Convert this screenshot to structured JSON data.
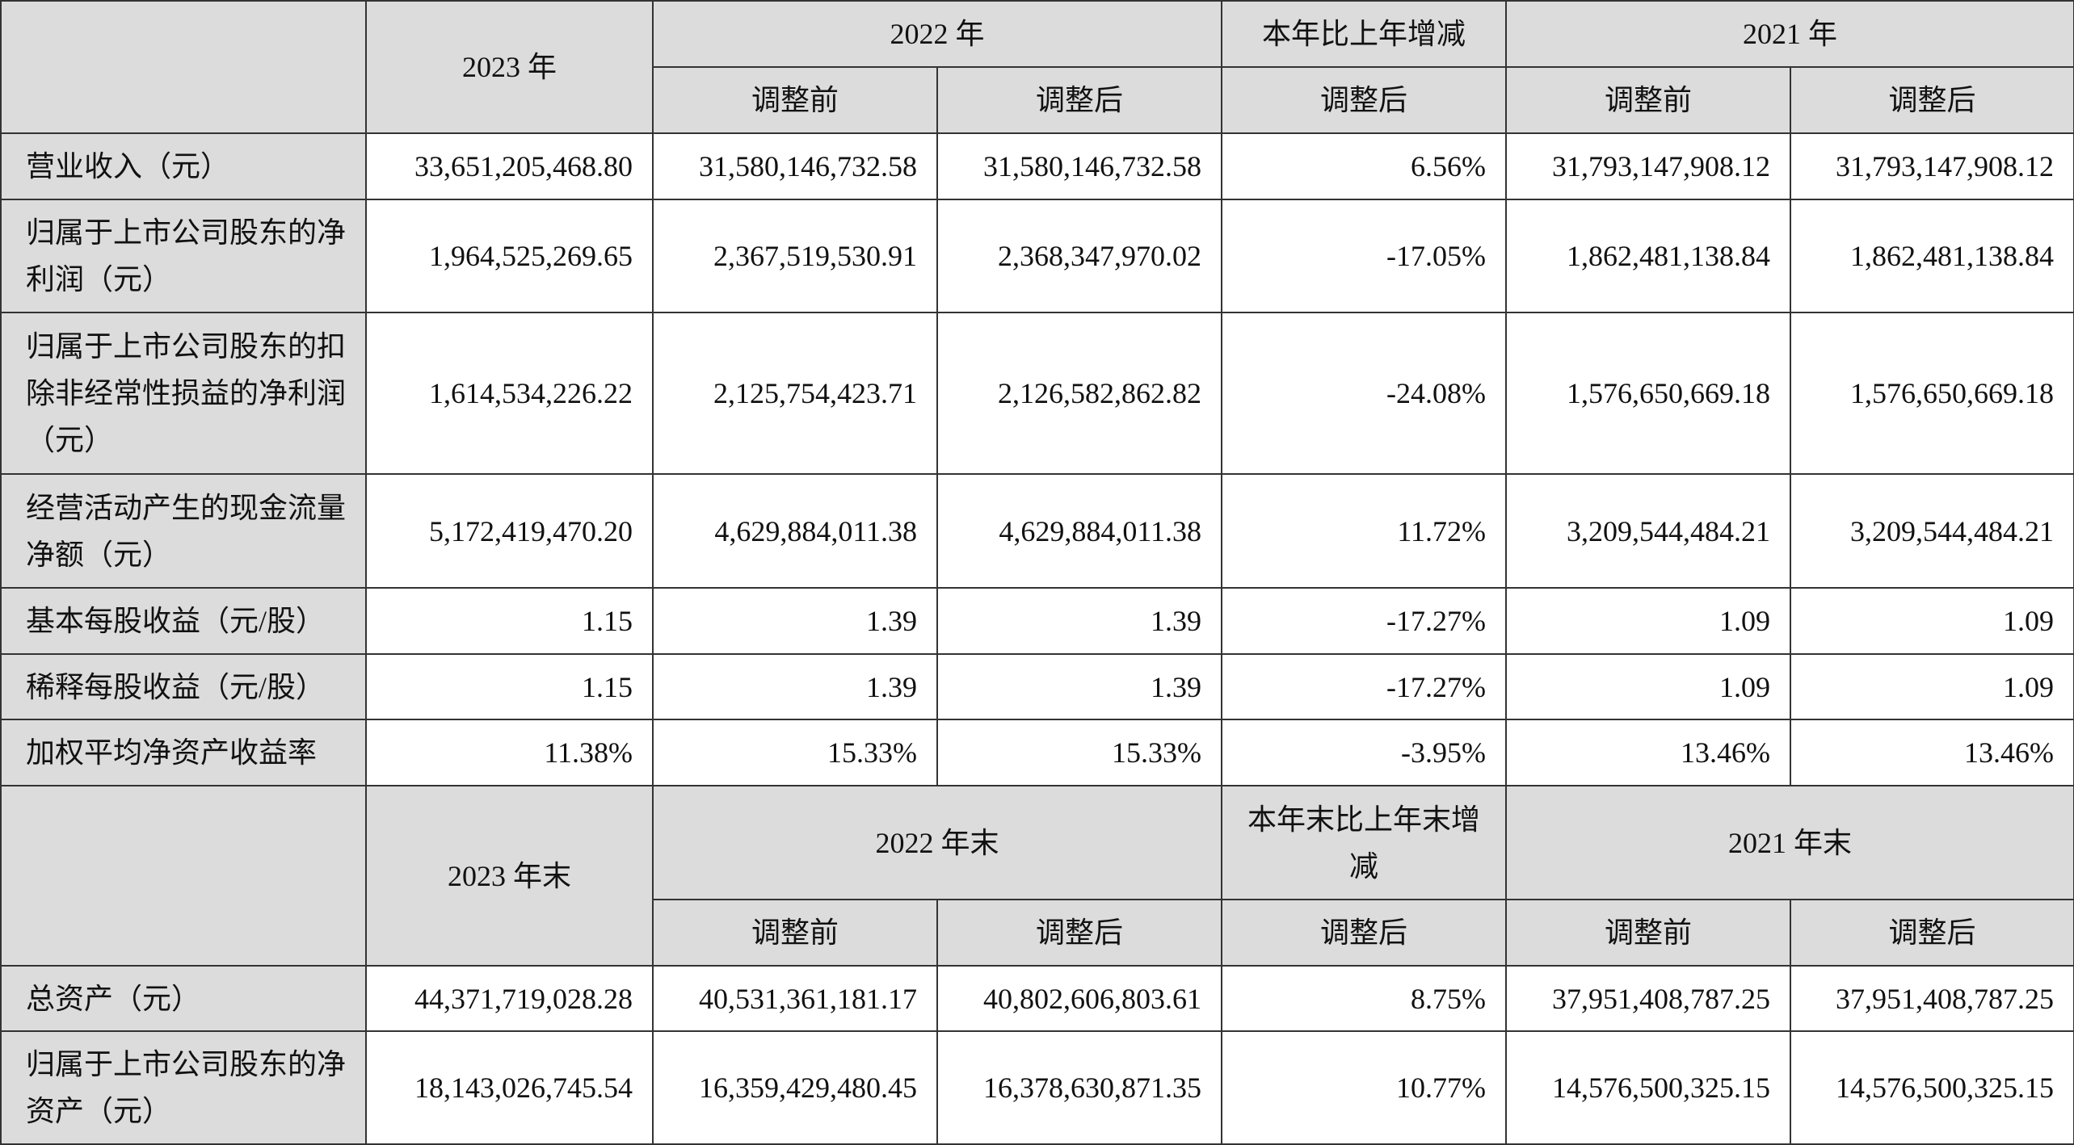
{
  "headers": {
    "year_2023": "2023 年",
    "year_2022": "2022 年",
    "yoy_change": "本年比上年增减",
    "year_2021": "2021 年",
    "before_adjustment": "调整前",
    "after_adjustment": "调整后",
    "year_end_2023": "2023 年末",
    "year_end_2022": "2022 年末",
    "yoy_end_change": "本年末比上年末增减",
    "year_end_2021": "2021 年末"
  },
  "income_rows": [
    {
      "label": "营业收入（元）",
      "v2023": "33,651,205,468.80",
      "v2022_before": "31,580,146,732.58",
      "v2022_after": "31,580,146,732.58",
      "change": "6.56%",
      "v2021_before": "31,793,147,908.12",
      "v2021_after": "31,793,147,908.12"
    },
    {
      "label": "归属于上市公司股东的净利润（元）",
      "v2023": "1,964,525,269.65",
      "v2022_before": "2,367,519,530.91",
      "v2022_after": "2,368,347,970.02",
      "change": "-17.05%",
      "v2021_before": "1,862,481,138.84",
      "v2021_after": "1,862,481,138.84"
    },
    {
      "label": "归属于上市公司股东的扣除非经常性损益的净利润（元）",
      "v2023": "1,614,534,226.22",
      "v2022_before": "2,125,754,423.71",
      "v2022_after": "2,126,582,862.82",
      "change": "-24.08%",
      "v2021_before": "1,576,650,669.18",
      "v2021_after": "1,576,650,669.18"
    },
    {
      "label": "经营活动产生的现金流量净额（元）",
      "v2023": "5,172,419,470.20",
      "v2022_before": "4,629,884,011.38",
      "v2022_after": "4,629,884,011.38",
      "change": "11.72%",
      "v2021_before": "3,209,544,484.21",
      "v2021_after": "3,209,544,484.21"
    },
    {
      "label": "基本每股收益（元/股）",
      "v2023": "1.15",
      "v2022_before": "1.39",
      "v2022_after": "1.39",
      "change": "-17.27%",
      "v2021_before": "1.09",
      "v2021_after": "1.09"
    },
    {
      "label": "稀释每股收益（元/股）",
      "v2023": "1.15",
      "v2022_before": "1.39",
      "v2022_after": "1.39",
      "change": "-17.27%",
      "v2021_before": "1.09",
      "v2021_after": "1.09"
    },
    {
      "label": "加权平均净资产收益率",
      "v2023": "11.38%",
      "v2022_before": "15.33%",
      "v2022_after": "15.33%",
      "change": "-3.95%",
      "v2021_before": "13.46%",
      "v2021_after": "13.46%"
    }
  ],
  "balance_rows": [
    {
      "label": "总资产（元）",
      "v2023": "44,371,719,028.28",
      "v2022_before": "40,531,361,181.17",
      "v2022_after": "40,802,606,803.61",
      "change": "8.75%",
      "v2021_before": "37,951,408,787.25",
      "v2021_after": "37,951,408,787.25"
    },
    {
      "label": "归属于上市公司股东的净资产（元）",
      "v2023": "18,143,026,745.54",
      "v2022_before": "16,359,429,480.45",
      "v2022_after": "16,378,630,871.35",
      "change": "10.77%",
      "v2021_before": "14,576,500,325.15",
      "v2021_after": "14,576,500,325.15"
    }
  ]
}
